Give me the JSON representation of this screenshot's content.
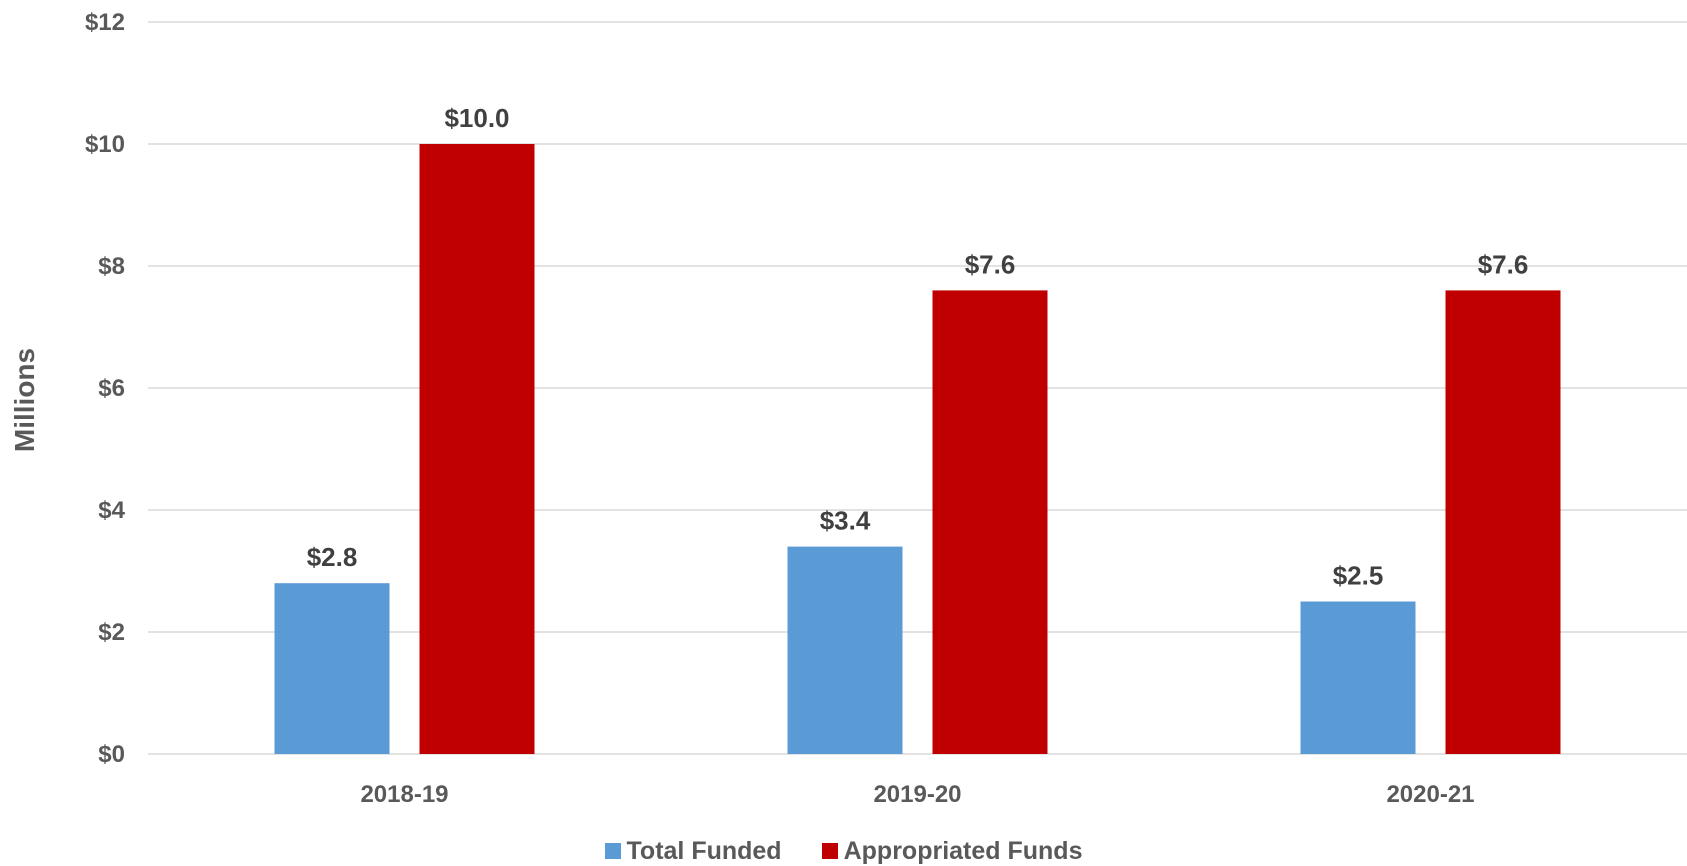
{
  "chart_data": {
    "type": "bar",
    "categories": [
      "2018-19",
      "2019-20",
      "2020-21"
    ],
    "series": [
      {
        "name": "Total Funded",
        "values": [
          2.8,
          3.4,
          2.5
        ],
        "labels": [
          "$2.8",
          "$3.4",
          "$2.5"
        ],
        "color": "#5B9BD5"
      },
      {
        "name": "Appropriated Funds",
        "values": [
          10.0,
          7.6,
          7.6
        ],
        "labels": [
          "$10.0",
          "$7.6",
          "$7.6"
        ],
        "color": "#C00000"
      }
    ],
    "title": "",
    "xlabel": "",
    "ylabel": "Millions",
    "ylim": [
      0,
      12
    ],
    "yticks": [
      0,
      2,
      4,
      6,
      8,
      10,
      12
    ],
    "ytick_labels": [
      "$0",
      "$2",
      "$4",
      "$6",
      "$8",
      "$10",
      "$12"
    ],
    "grid": true,
    "legend_position": "bottom-center",
    "colors": {
      "gridline": "#D9D9D9",
      "axis_text": "#595959"
    }
  }
}
